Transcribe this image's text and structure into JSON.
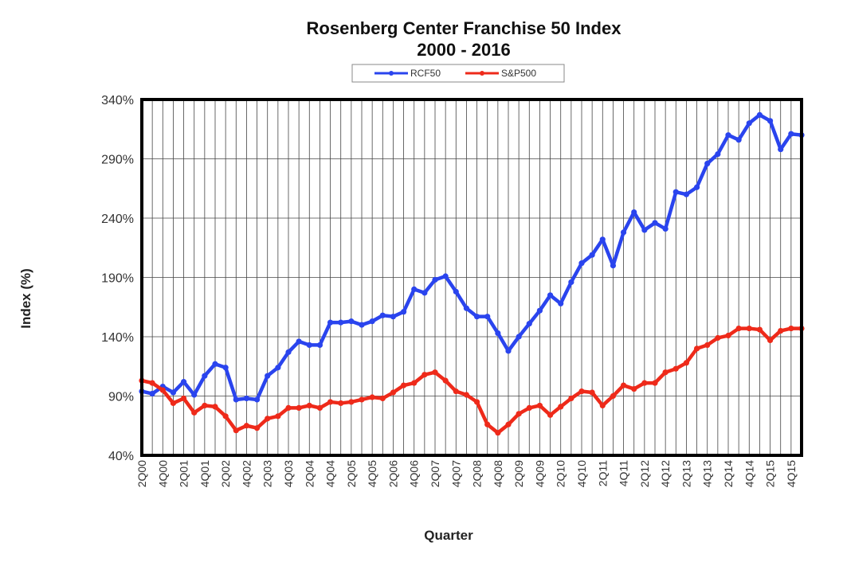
{
  "chart_data": {
    "type": "line",
    "title": "Rosenberg Center Franchise 50 Index",
    "subtitle": "2000 - 2016",
    "xlabel": "Quarter",
    "ylabel": "Index (%)",
    "ylim": [
      40,
      340
    ],
    "y_ticks": [
      "340%",
      "290%",
      "240%",
      "190%",
      "140%",
      "90%",
      "40%"
    ],
    "y_tick_values": [
      340,
      290,
      240,
      190,
      140,
      90,
      40
    ],
    "grid": true,
    "legend": "top-center",
    "categories": [
      "2Q00",
      "3Q00",
      "4Q00",
      "1Q01",
      "2Q01",
      "3Q01",
      "4Q01",
      "1Q02",
      "2Q02",
      "3Q02",
      "4Q02",
      "1Q03",
      "2Q03",
      "3Q03",
      "4Q03",
      "1Q04",
      "2Q04",
      "3Q04",
      "4Q04",
      "1Q05",
      "2Q05",
      "3Q05",
      "4Q05",
      "1Q06",
      "2Q06",
      "3Q06",
      "4Q06",
      "1Q07",
      "2Q07",
      "3Q07",
      "4Q07",
      "1Q08",
      "2Q08",
      "3Q08",
      "4Q08",
      "1Q09",
      "2Q09",
      "3Q09",
      "4Q09",
      "1Q10",
      "2Q10",
      "3Q10",
      "4Q10",
      "1Q11",
      "2Q11",
      "3Q11",
      "4Q11",
      "1Q12",
      "2Q12",
      "3Q12",
      "4Q12",
      "1Q13",
      "2Q13",
      "3Q13",
      "4Q13",
      "1Q14",
      "2Q14",
      "3Q14",
      "4Q14",
      "1Q15",
      "2Q15",
      "3Q15",
      "4Q15",
      "1Q16"
    ],
    "x_tick_labels": [
      "2Q00",
      "4Q00",
      "2Q01",
      "4Q01",
      "2Q02",
      "4Q02",
      "2Q03",
      "4Q03",
      "2Q04",
      "4Q04",
      "2Q05",
      "4Q05",
      "2Q06",
      "4Q06",
      "2Q07",
      "4Q07",
      "2Q08",
      "4Q08",
      "2Q09",
      "4Q09",
      "2Q10",
      "4Q10",
      "2Q11",
      "4Q11",
      "2Q12",
      "4Q12",
      "2Q13",
      "4Q13",
      "2Q14",
      "4Q14",
      "2Q15",
      "4Q15"
    ],
    "series": [
      {
        "name": "RCF50",
        "color": "#2a44ee",
        "values": [
          94,
          92,
          98,
          93,
          102,
          91,
          107,
          117,
          114,
          87,
          88,
          87,
          107,
          114,
          127,
          136,
          133,
          133,
          152,
          152,
          153,
          150,
          153,
          158,
          157,
          161,
          180,
          177,
          188,
          191,
          178,
          164,
          157,
          157,
          143,
          128,
          140,
          151,
          162,
          175,
          168,
          186,
          202,
          209,
          222,
          200,
          228,
          245,
          230,
          236,
          231,
          262,
          260,
          266,
          286,
          294,
          310,
          306,
          320,
          327,
          322,
          298,
          311,
          310
        ]
      },
      {
        "name": "S&P500",
        "color": "#ee2a1a",
        "values": [
          103,
          101,
          95,
          84,
          88,
          76,
          82,
          81,
          73,
          61,
          65,
          63,
          71,
          73,
          80,
          80,
          82,
          80,
          85,
          84,
          85,
          87,
          89,
          88,
          93,
          99,
          101,
          108,
          110,
          103,
          94,
          91,
          85,
          66,
          59,
          66,
          75,
          80,
          82,
          74,
          81,
          88,
          94,
          93,
          82,
          90,
          99,
          96,
          101,
          101,
          110,
          113,
          118,
          130,
          133,
          139,
          141,
          147,
          147,
          146,
          137,
          145,
          147,
          147
        ]
      }
    ]
  }
}
